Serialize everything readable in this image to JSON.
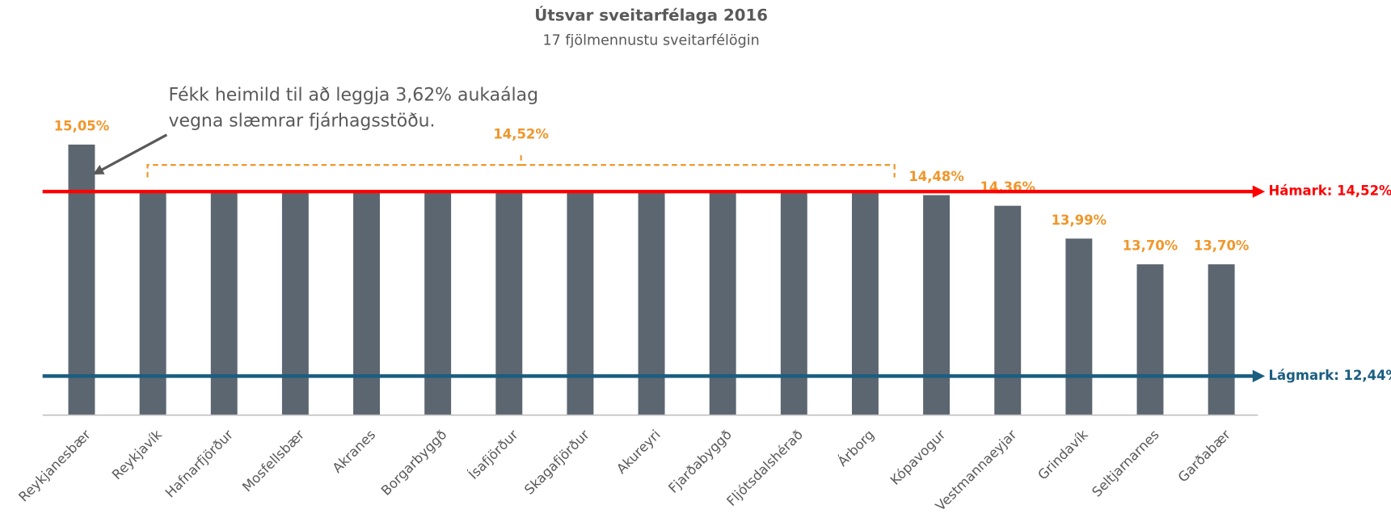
{
  "chart_data": {
    "type": "bar",
    "title": "Útsvar sveitarfélaga 2016",
    "subtitle": "17 fjölmennustu sveitarfélögin",
    "categories": [
      "Reykjanesbær",
      "Reykjavík",
      "Hafnarfjörður",
      "Mosfellsbær",
      "Akranes",
      "Borgarbyggð",
      "Ísafjörður",
      "Skagafjörður",
      "Akureyri",
      "Fjarðabyggð",
      "Fljótsdalshérað",
      "Árborg",
      "Kópavogur",
      "Vestmannaeyjar",
      "Grindavík",
      "Seltjarnarnes",
      "Garðabær"
    ],
    "values": [
      15.05,
      14.52,
      14.52,
      14.52,
      14.52,
      14.52,
      14.52,
      14.52,
      14.52,
      14.52,
      14.52,
      14.52,
      14.48,
      14.36,
      13.99,
      13.7,
      13.7
    ],
    "value_labels": [
      "15,05%",
      null,
      null,
      null,
      null,
      null,
      null,
      null,
      null,
      null,
      null,
      null,
      "14,48%",
      "14,36%",
      "13,99%",
      "13,70%",
      "13,70%"
    ],
    "group_label": {
      "text": "14,52%",
      "value": 14.52,
      "from": 1,
      "to": 11
    },
    "color": "#5b6670",
    "label_color": "#f0962a",
    "ylim": [
      12,
      15.5
    ],
    "reference_lines": [
      {
        "value": 14.52,
        "label": "Hámark: 14,52%",
        "color": "#ff0000"
      },
      {
        "value": 12.44,
        "label": "Lágmark: 12,44%",
        "color": "#1a5e80"
      }
    ],
    "annotation": {
      "lines": [
        "Fékk heimild til að leggja 3,62% aukaálag",
        "vegna slæmrar fjárhagsstöðu."
      ],
      "target": 0
    }
  }
}
